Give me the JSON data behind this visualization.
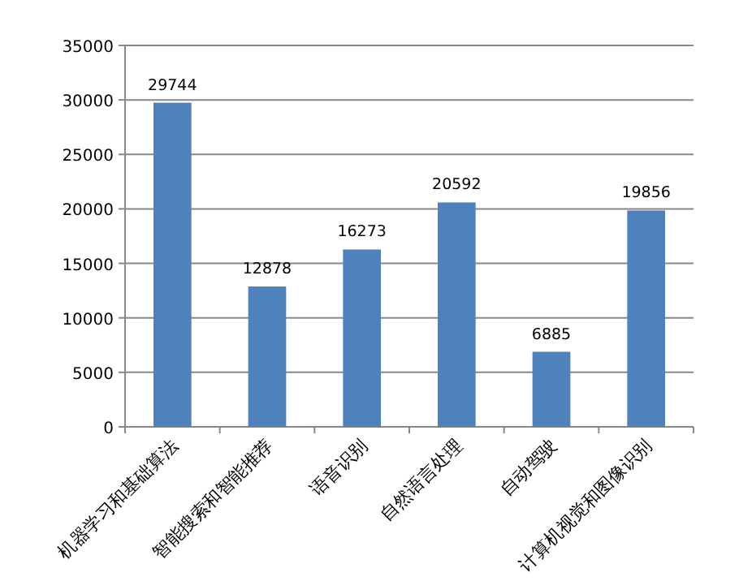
{
  "chart_data": {
    "type": "bar",
    "categories": [
      "机器学习和基础算法",
      "智能搜索和智能推荐",
      "语音识别",
      "自然语言处理",
      "自动驾驶",
      "计算机视觉和图像识别"
    ],
    "values": [
      29744,
      12878,
      16273,
      20592,
      6885,
      19856
    ],
    "color": "#4f81bd",
    "ylim": [
      0,
      35000
    ],
    "yticks": [
      0,
      5000,
      10000,
      15000,
      20000,
      25000,
      30000,
      35000
    ],
    "grid": "y",
    "data_labels": true
  }
}
